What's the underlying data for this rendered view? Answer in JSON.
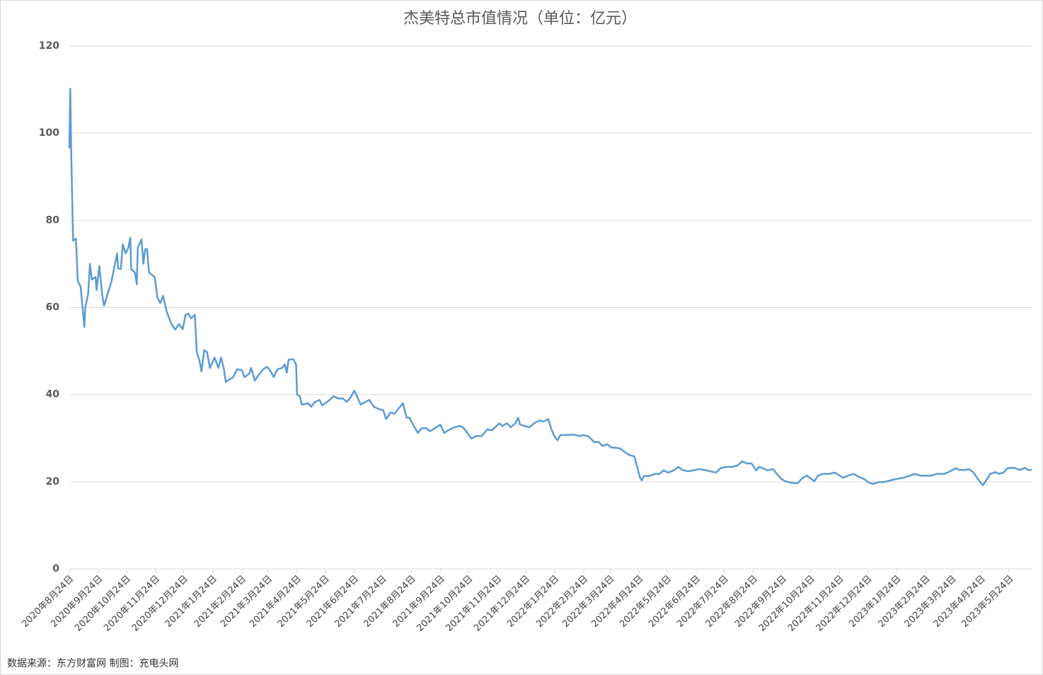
{
  "chart_data": {
    "type": "line",
    "title": "杰美特总市值情况（单位：亿元）",
    "source": "数据来源：东方财富网 制图：充电头网",
    "color": "#5b9bd5",
    "grid": true,
    "ylim": [
      0,
      120
    ],
    "yticks": [
      0,
      20,
      40,
      60,
      80,
      100,
      120
    ],
    "xlim": [
      "2020-08-24",
      "2023-06-17"
    ],
    "xticks": [
      {
        "value": "2020-08-24",
        "label": "2020年8月24日"
      },
      {
        "value": "2020-09-24",
        "label": "2020年9月24日"
      },
      {
        "value": "2020-10-24",
        "label": "2020年10月24日"
      },
      {
        "value": "2020-11-24",
        "label": "2020年11月24日"
      },
      {
        "value": "2020-12-24",
        "label": "2020年12月24日"
      },
      {
        "value": "2021-01-24",
        "label": "2021年1月24日"
      },
      {
        "value": "2021-02-24",
        "label": "2021年2月24日"
      },
      {
        "value": "2021-03-24",
        "label": "2021年3月24日"
      },
      {
        "value": "2021-04-24",
        "label": "2021年4月24日"
      },
      {
        "value": "2021-05-24",
        "label": "2021年5月24日"
      },
      {
        "value": "2021-06-24",
        "label": "2021年6月24日"
      },
      {
        "value": "2021-07-24",
        "label": "2021年7月24日"
      },
      {
        "value": "2021-08-24",
        "label": "2021年8月24日"
      },
      {
        "value": "2021-09-24",
        "label": "2021年9月24日"
      },
      {
        "value": "2021-10-24",
        "label": "2021年10月24日"
      },
      {
        "value": "2021-11-24",
        "label": "2021年11月24日"
      },
      {
        "value": "2021-12-24",
        "label": "2021年12月24日"
      },
      {
        "value": "2022-01-24",
        "label": "2022年1月24日"
      },
      {
        "value": "2022-02-24",
        "label": "2022年2月24日"
      },
      {
        "value": "2022-03-24",
        "label": "2022年3月24日"
      },
      {
        "value": "2022-04-24",
        "label": "2022年4月24日"
      },
      {
        "value": "2022-05-24",
        "label": "2022年5月24日"
      },
      {
        "value": "2022-06-24",
        "label": "2022年6月24日"
      },
      {
        "value": "2022-07-24",
        "label": "2022年7月24日"
      },
      {
        "value": "2022-08-24",
        "label": "2022年8月24日"
      },
      {
        "value": "2022-09-24",
        "label": "2022年9月24日"
      },
      {
        "value": "2022-10-24",
        "label": "2022年10月24日"
      },
      {
        "value": "2022-11-24",
        "label": "2022年11月24日"
      },
      {
        "value": "2022-12-24",
        "label": "2022年12月24日"
      },
      {
        "value": "2023-01-24",
        "label": "2023年1月24日"
      },
      {
        "value": "2023-02-24",
        "label": "2023年2月24日"
      },
      {
        "value": "2023-03-24",
        "label": "2023年3月24日"
      },
      {
        "value": "2023-04-24",
        "label": "2023年4月24日"
      },
      {
        "value": "2023-05-24",
        "label": "2023年5月24日"
      }
    ],
    "x": [
      "2020-08-24",
      "2020-08-25",
      "2020-08-26",
      "2020-08-28",
      "2020-08-31",
      "2020-09-01",
      "2020-09-02",
      "2020-09-05",
      "2020-09-09",
      "2020-09-10",
      "2020-09-13",
      "2020-09-15",
      "2020-09-17",
      "2020-09-21",
      "2020-09-22",
      "2020-09-25",
      "2020-09-28",
      "2020-09-30",
      "2020-10-08",
      "2020-10-14",
      "2020-10-15",
      "2020-10-18",
      "2020-10-20",
      "2020-10-23",
      "2020-10-26",
      "2020-10-28",
      "2020-10-29",
      "2020-11-02",
      "2020-11-04",
      "2020-11-05",
      "2020-11-09",
      "2020-11-11",
      "2020-11-13",
      "2020-11-15",
      "2020-11-17",
      "2020-11-23",
      "2020-11-26",
      "2020-11-29",
      "2020-12-02",
      "2020-12-06",
      "2020-12-11",
      "2020-12-15",
      "2020-12-19",
      "2020-12-23",
      "2020-12-26",
      "2020-12-29",
      "2021-01-01",
      "2021-01-05",
      "2021-01-07",
      "2021-01-10",
      "2021-01-12",
      "2021-01-15",
      "2021-01-18",
      "2021-01-21",
      "2021-01-26",
      "2021-01-30",
      "2021-02-02",
      "2021-02-05",
      "2021-02-07",
      "2021-02-15",
      "2021-02-19",
      "2021-02-24",
      "2021-02-27",
      "2021-03-04",
      "2021-03-06",
      "2021-03-10",
      "2021-03-14",
      "2021-03-19",
      "2021-03-23",
      "2021-03-27",
      "2021-03-30",
      "2021-04-03",
      "2021-04-08",
      "2021-04-11",
      "2021-04-13",
      "2021-04-15",
      "2021-04-20",
      "2021-04-23",
      "2021-04-24",
      "2021-04-27",
      "2021-04-29",
      "2021-05-06",
      "2021-05-09",
      "2021-05-13",
      "2021-05-18",
      "2021-05-21",
      "2021-05-24",
      "2021-05-29",
      "2021-06-02",
      "2021-06-07",
      "2021-06-12",
      "2021-06-16",
      "2021-06-20",
      "2021-06-24",
      "2021-06-27",
      "2021-07-01",
      "2021-07-06",
      "2021-07-10",
      "2021-07-15",
      "2021-07-20",
      "2021-07-25",
      "2021-07-28",
      "2021-08-02",
      "2021-08-06",
      "2021-08-10",
      "2021-08-15",
      "2021-08-19",
      "2021-08-22",
      "2021-08-25",
      "2021-08-28",
      "2021-08-31",
      "2021-09-04",
      "2021-09-09",
      "2021-09-13",
      "2021-09-18",
      "2021-09-24",
      "2021-09-28",
      "2021-10-04",
      "2021-10-09",
      "2021-10-15",
      "2021-10-19",
      "2021-10-24",
      "2021-10-27",
      "2021-11-01",
      "2021-11-07",
      "2021-11-13",
      "2021-11-18",
      "2021-11-22",
      "2021-11-26",
      "2021-11-29",
      "2021-12-04",
      "2021-12-08",
      "2021-12-13",
      "2021-12-16",
      "2021-12-18",
      "2021-12-23",
      "2021-12-28",
      "2022-01-02",
      "2022-01-08",
      "2022-01-12",
      "2022-01-17",
      "2022-01-20",
      "2022-01-23",
      "2022-01-27",
      "2022-01-30",
      "2022-02-05",
      "2022-02-13",
      "2022-02-19",
      "2022-02-24",
      "2022-03-01",
      "2022-03-07",
      "2022-03-12",
      "2022-03-16",
      "2022-03-21",
      "2022-03-26",
      "2022-03-30",
      "2022-04-04",
      "2022-04-10",
      "2022-04-14",
      "2022-04-19",
      "2022-04-22",
      "2022-04-25",
      "2022-04-27",
      "2022-04-29",
      "2022-05-05",
      "2022-05-11",
      "2022-05-16",
      "2022-05-20",
      "2022-05-25",
      "2022-05-31",
      "2022-06-05",
      "2022-06-09",
      "2022-06-15",
      "2022-06-21",
      "2022-06-27",
      "2022-07-03",
      "2022-07-09",
      "2022-07-15",
      "2022-07-20",
      "2022-07-26",
      "2022-08-01",
      "2022-08-07",
      "2022-08-12",
      "2022-08-17",
      "2022-08-22",
      "2022-08-27",
      "2022-08-30",
      "2022-09-03",
      "2022-09-08",
      "2022-09-14",
      "2022-09-18",
      "2022-09-23",
      "2022-09-27",
      "2022-10-03",
      "2022-10-10",
      "2022-10-15",
      "2022-10-20",
      "2022-10-25",
      "2022-10-28",
      "2022-11-01",
      "2022-11-07",
      "2022-11-13",
      "2022-11-19",
      "2022-11-24",
      "2022-11-28",
      "2022-12-03",
      "2022-12-09",
      "2022-12-15",
      "2022-12-21",
      "2022-12-25",
      "2022-12-30",
      "2023-01-04",
      "2023-01-10",
      "2023-01-17",
      "2023-01-23",
      "2023-01-31",
      "2023-02-06",
      "2023-02-12",
      "2023-02-18",
      "2023-02-24",
      "2023-03-02",
      "2023-03-08",
      "2023-03-16",
      "2023-03-22",
      "2023-03-28",
      "2023-04-01",
      "2023-04-07",
      "2023-04-11",
      "2023-04-16",
      "2023-04-21",
      "2023-04-26",
      "2023-04-30",
      "2023-05-04",
      "2023-05-09",
      "2023-05-13",
      "2023-05-18",
      "2023-05-22",
      "2023-05-29",
      "2023-06-04",
      "2023-06-10",
      "2023-06-13",
      "2023-06-17"
    ],
    "values": [
      96.5,
      110.2,
      96,
      75.3,
      75.8,
      71,
      66,
      64.8,
      55.5,
      60,
      63,
      70,
      66.4,
      67,
      64,
      69.5,
      63,
      60.4,
      66,
      72.4,
      69,
      68.8,
      74.5,
      72.4,
      73.7,
      76,
      68.8,
      68,
      65.3,
      73.7,
      75.6,
      70,
      73.4,
      73.4,
      68,
      67,
      62.3,
      61,
      62.7,
      59,
      56.2,
      54.9,
      56.2,
      55,
      58.3,
      58.6,
      57.5,
      58.3,
      49.7,
      47.7,
      45.3,
      50.2,
      49.7,
      46.1,
      48.5,
      46.1,
      48.5,
      45.8,
      42.9,
      44,
      45.8,
      45.6,
      44,
      44.8,
      46.1,
      43.2,
      44.5,
      45.8,
      46.4,
      45.3,
      44,
      45.8,
      46.1,
      46.9,
      45,
      48,
      48.1,
      46.9,
      40,
      39.6,
      37.7,
      38,
      37.2,
      38.3,
      38.8,
      37.5,
      38,
      38.8,
      39.6,
      39.1,
      39.1,
      38.3,
      39.3,
      40.9,
      39.6,
      37.7,
      38.3,
      38.8,
      37.2,
      36.7,
      36.4,
      34.4,
      35.9,
      35.6,
      36.7,
      38,
      34.7,
      34.7,
      33.4,
      32.3,
      31.2,
      32.3,
      32.3,
      31.6,
      32.3,
      33.1,
      31.2,
      32,
      32.5,
      32.8,
      32.3,
      30.8,
      29.9,
      30.5,
      30.5,
      32,
      31.8,
      32.6,
      33.4,
      32.8,
      33.4,
      32.5,
      33.4,
      34.7,
      33.1,
      32.8,
      32.5,
      33.4,
      34.1,
      33.8,
      34.4,
      32.3,
      30.7,
      29.5,
      30.7,
      30.7,
      30.8,
      30.5,
      30.7,
      30.4,
      29.1,
      29.1,
      28.2,
      28.6,
      27.8,
      27.8,
      27.6,
      26.6,
      26.1,
      25.8,
      23.4,
      20.9,
      20.3,
      21.3,
      21.3,
      21.8,
      21.8,
      22.6,
      22.1,
      22.6,
      23.4,
      22.7,
      22.4,
      22.6,
      22.9,
      22.7,
      22.4,
      22.1,
      23.1,
      23.4,
      23.4,
      23.7,
      24.7,
      24.2,
      24.2,
      22.6,
      23.4,
      23.1,
      22.6,
      22.9,
      21.8,
      20.6,
      20.1,
      19.8,
      19.6,
      20.8,
      21.4,
      20.6,
      20.1,
      21.4,
      21.8,
      21.8,
      22.1,
      21.4,
      20.9,
      21.4,
      21.8,
      21.1,
      20.5,
      19.8,
      19.5,
      19.9,
      19.9,
      20.3,
      20.6,
      20.9,
      21.3,
      21.8,
      21.4,
      21.4,
      21.4,
      21.8,
      21.8,
      22.4,
      23.1,
      22.7,
      22.7,
      22.9,
      22.1,
      20.5,
      19.2,
      20.5,
      21.8,
      22.2,
      21.8,
      22.1,
      23.1,
      23.2,
      22.7,
      23.2,
      22.7,
      22.7
    ]
  }
}
